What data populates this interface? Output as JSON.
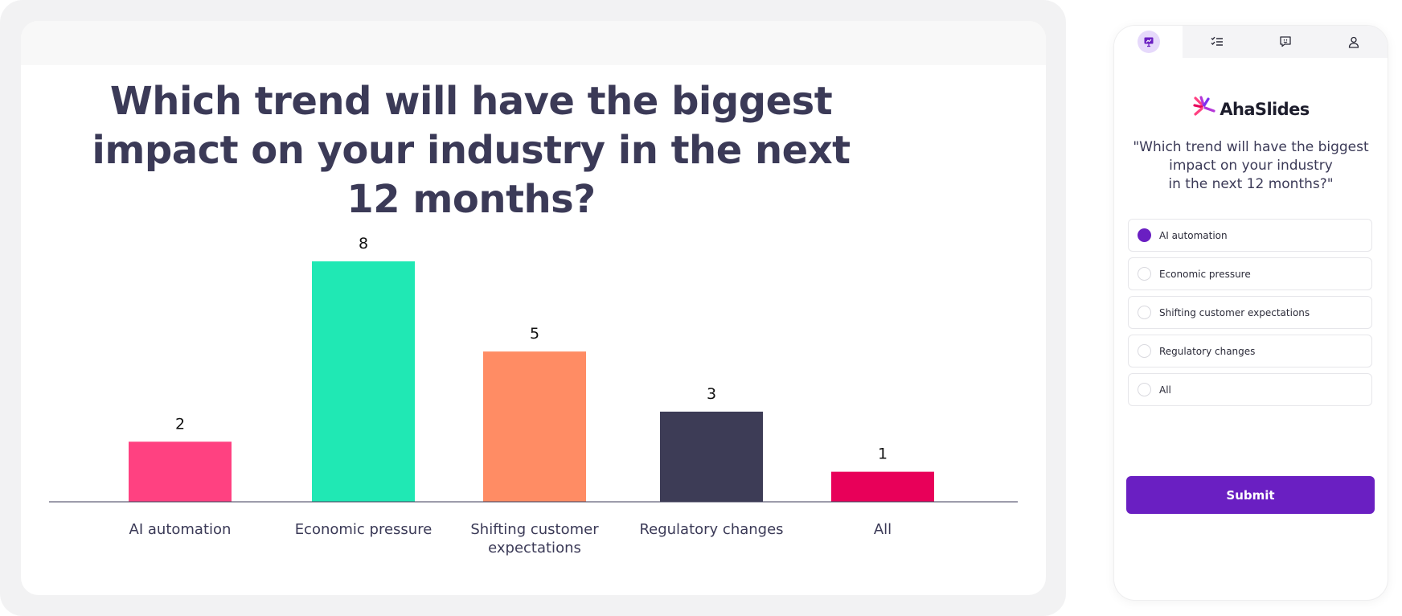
{
  "presentation": {
    "question": "Which trend will have the biggest impact on your industry in the next 12 months?"
  },
  "chart_data": {
    "type": "bar",
    "categories": [
      "AI automation",
      "Economic pressure",
      "Shifting customer expectations",
      "Regulatory changes",
      "All"
    ],
    "category_lines": [
      [
        "AI automation"
      ],
      [
        "Economic pressure"
      ],
      [
        "Shifting customer",
        "expectations"
      ],
      [
        "Regulatory changes"
      ],
      [
        "All"
      ]
    ],
    "values": [
      2,
      8,
      5,
      3,
      1
    ],
    "colors": [
      "#ff4181",
      "#20e8b4",
      "#ff8c64",
      "#3d3c56",
      "#e80059"
    ],
    "title": "Which trend will have the biggest impact on your industry in the next 12 months?",
    "xlabel": "",
    "ylabel": "",
    "ylim": [
      0,
      8
    ],
    "grid": false,
    "data_labels": true
  },
  "phone": {
    "tabs": [
      {
        "name": "presentation-tab",
        "icon": "presentation-icon",
        "active": true
      },
      {
        "name": "checklist-tab",
        "icon": "checklist-icon",
        "active": false
      },
      {
        "name": "chat-tab",
        "icon": "chat-icon",
        "active": false
      },
      {
        "name": "profile-tab",
        "icon": "user-icon",
        "active": false
      }
    ],
    "brand": "AhaSlides",
    "question_lines": [
      "\"Which trend will have the biggest",
      "impact on your industry",
      "in the next 12 months?\""
    ],
    "options": [
      {
        "label": "AI automation",
        "selected": true
      },
      {
        "label": "Economic pressure",
        "selected": false
      },
      {
        "label": "Shifting customer expectations",
        "selected": false
      },
      {
        "label": "Regulatory changes",
        "selected": false
      },
      {
        "label": "All",
        "selected": false
      }
    ],
    "submit_label": "Submit",
    "accent_color": "#6a1fc2"
  }
}
